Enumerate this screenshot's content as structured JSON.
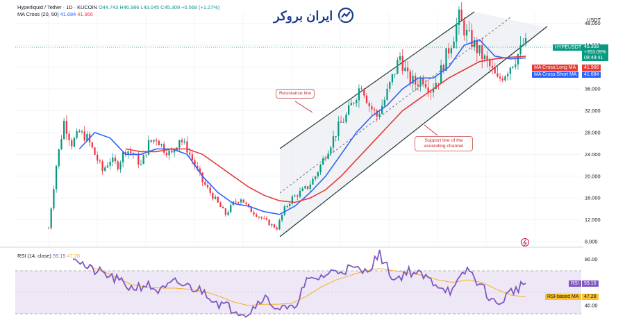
{
  "header": {
    "symbol": "Hyperliquid / Tether · 1D · KUCOIN",
    "open": "O44.743",
    "high": "H46.986",
    "low": "L43.045",
    "close": "C45.309",
    "change": "+0.568 (+1.27%)",
    "ma_label": "MA Cross (20, 50)",
    "ma_short": "41.684",
    "ma_long": "41.966"
  },
  "rsi_header": {
    "label": "RSI (14, close)",
    "rsi": "59.15",
    "rsi_ma": "47.28"
  },
  "logo_text": "ایران بروکر",
  "axis": {
    "currency": "USDT"
  },
  "tags": {
    "symbol_tag": "HYPEUSDT",
    "price": "45.309",
    "pct": "+353.09%",
    "countdown": "08:49:41",
    "long_ma_label": "MA Cross:Long MA",
    "long_ma_value": "41.966",
    "short_ma_label": "MA Cross:Short MA",
    "short_ma_value": "41.684",
    "rsi_label": "RSI",
    "rsi_value": "59.15",
    "rsi_ma_label": "RSI-based MA",
    "rsi_ma_value": "47.28"
  },
  "annotations": {
    "resistance": "Resistance line",
    "support": "Support line of the ascending channel"
  },
  "colors": {
    "up": "#089981",
    "down": "#f23645",
    "short_ma": "#2962ff",
    "long_ma": "#e53935",
    "rsi": "#7e57c2",
    "rsi_ma": "#f5b021",
    "channel": "#1f3b36"
  },
  "chart_data": [
    {
      "type": "candlestick",
      "title": "Hyperliquid / Tether · 1D · KUCOIN",
      "y_ticks": [
        8,
        12,
        16,
        20,
        24,
        28,
        32,
        36,
        40,
        44,
        48
      ],
      "y_tick_labels": [
        "8.000",
        "12.000",
        "16.000",
        "20.000",
        "24.000",
        "28.000",
        "32.000",
        "36.000",
        "40.000",
        "44.000",
        "48.000"
      ],
      "ylim": [
        7.5,
        50
      ],
      "y_unit": "USDT",
      "last_price": 45.309,
      "close_path": [
        [
          0,
          10.5
        ],
        [
          3,
          22
        ],
        [
          6,
          30
        ],
        [
          9,
          26
        ],
        [
          12,
          28
        ],
        [
          15,
          27
        ],
        [
          18,
          24
        ],
        [
          21,
          21
        ],
        [
          24,
          23
        ],
        [
          27,
          22
        ],
        [
          30,
          25
        ],
        [
          33,
          24
        ],
        [
          36,
          22
        ],
        [
          39,
          26
        ],
        [
          42,
          27
        ],
        [
          45,
          25
        ],
        [
          48,
          24
        ],
        [
          51,
          27
        ],
        [
          54,
          25
        ],
        [
          57,
          22
        ],
        [
          60,
          19
        ],
        [
          63,
          17
        ],
        [
          66,
          15
        ],
        [
          69,
          13
        ],
        [
          72,
          15
        ],
        [
          75,
          16
        ],
        [
          78,
          14
        ],
        [
          81,
          13
        ],
        [
          84,
          12
        ],
        [
          87,
          11
        ],
        [
          89,
          10.5
        ],
        [
          92,
          14
        ],
        [
          95,
          16
        ],
        [
          98,
          17
        ],
        [
          101,
          18
        ],
        [
          104,
          20
        ],
        [
          107,
          23
        ],
        [
          110,
          26
        ],
        [
          113,
          29
        ],
        [
          116,
          31
        ],
        [
          119,
          34
        ],
        [
          122,
          37
        ],
        [
          125,
          33
        ],
        [
          128,
          31
        ],
        [
          131,
          34
        ],
        [
          134,
          38
        ],
        [
          137,
          42
        ],
        [
          140,
          38
        ],
        [
          143,
          37
        ],
        [
          146,
          38
        ],
        [
          149,
          36
        ],
        [
          152,
          38
        ],
        [
          155,
          42
        ],
        [
          158,
          46
        ],
        [
          160,
          49
        ],
        [
          163,
          46
        ],
        [
          166,
          44
        ],
        [
          169,
          42
        ],
        [
          172,
          40
        ],
        [
          175,
          37.5
        ],
        [
          178,
          39
        ],
        [
          181,
          41
        ],
        [
          184,
          43
        ],
        [
          186,
          45.3
        ]
      ],
      "series": [
        {
          "name": "MA Cross:Short MA",
          "points": [
            [
              12,
              25
            ],
            [
              18,
              28
            ],
            [
              24,
              27
            ],
            [
              30,
              24
            ],
            [
              36,
              24
            ],
            [
              42,
              25
            ],
            [
              48,
              25
            ],
            [
              54,
              24
            ],
            [
              60,
              20
            ],
            [
              66,
              17
            ],
            [
              72,
              15
            ],
            [
              78,
              14.5
            ],
            [
              84,
              13.5
            ],
            [
              90,
              13
            ],
            [
              96,
              14.5
            ],
            [
              102,
              17
            ],
            [
              108,
              20
            ],
            [
              114,
              24
            ],
            [
              120,
              28
            ],
            [
              126,
              31
            ],
            [
              132,
              33
            ],
            [
              138,
              36
            ],
            [
              144,
              38
            ],
            [
              150,
              38
            ],
            [
              156,
              40
            ],
            [
              162,
              44
            ],
            [
              168,
              45
            ],
            [
              174,
              42
            ],
            [
              180,
              41.5
            ],
            [
              186,
              41.684
            ]
          ]
        },
        {
          "name": "MA Cross:Long MA",
          "points": [
            [
              30,
              25
            ],
            [
              36,
              24.5
            ],
            [
              42,
              24.5
            ],
            [
              48,
              25
            ],
            [
              54,
              25
            ],
            [
              60,
              24
            ],
            [
              66,
              22
            ],
            [
              72,
              20
            ],
            [
              78,
              18
            ],
            [
              84,
              16.5
            ],
            [
              90,
              15.5
            ],
            [
              96,
              15.2
            ],
            [
              102,
              16
            ],
            [
              108,
              17.5
            ],
            [
              114,
              20
            ],
            [
              120,
              23
            ],
            [
              126,
              26
            ],
            [
              132,
              29
            ],
            [
              138,
              32
            ],
            [
              144,
              34
            ],
            [
              150,
              36
            ],
            [
              156,
              38
            ],
            [
              162,
              39.5
            ],
            [
              168,
              41
            ],
            [
              174,
              41.5
            ],
            [
              180,
              41.8
            ],
            [
              186,
              41.966
            ]
          ]
        }
      ],
      "annotations": [
        "Resistance line",
        "Support line of the ascending channel"
      ]
    },
    {
      "type": "line",
      "title": "RSI (14, close)",
      "y_ticks": [
        40,
        60,
        80
      ],
      "y_tick_labels": [
        "40.00",
        "60.00",
        "80.00"
      ],
      "bands": [
        30,
        70
      ],
      "ylim": [
        28,
        88
      ],
      "series": [
        {
          "name": "RSI",
          "points": [
            [
              0,
              84
            ],
            [
              6,
              72
            ],
            [
              12,
              68
            ],
            [
              18,
              62
            ],
            [
              24,
              55
            ],
            [
              30,
              58
            ],
            [
              36,
              52
            ],
            [
              42,
              60
            ],
            [
              48,
              56
            ],
            [
              54,
              52
            ],
            [
              60,
              42
            ],
            [
              66,
              37
            ],
            [
              72,
              33
            ],
            [
              78,
              48
            ],
            [
              84,
              38
            ],
            [
              90,
              36
            ],
            [
              96,
              60
            ],
            [
              102,
              65
            ],
            [
              108,
              70
            ],
            [
              114,
              72
            ],
            [
              120,
              69
            ],
            [
              126,
              84
            ],
            [
              132,
              62
            ],
            [
              138,
              70
            ],
            [
              144,
              65
            ],
            [
              150,
              58
            ],
            [
              156,
              52
            ],
            [
              162,
              72
            ],
            [
              168,
              56
            ],
            [
              174,
              40
            ],
            [
              180,
              52
            ],
            [
              186,
              59.15
            ]
          ]
        },
        {
          "name": "RSI-based MA",
          "points": [
            [
              6,
              74
            ],
            [
              12,
              70
            ],
            [
              18,
              64
            ],
            [
              24,
              58
            ],
            [
              30,
              56
            ],
            [
              36,
              55
            ],
            [
              42,
              55
            ],
            [
              48,
              54
            ],
            [
              54,
              52
            ],
            [
              60,
              48
            ],
            [
              66,
              43
            ],
            [
              72,
              40
            ],
            [
              78,
              41
            ],
            [
              84,
              41
            ],
            [
              90,
              42
            ],
            [
              96,
              48
            ],
            [
              102,
              56
            ],
            [
              108,
              62
            ],
            [
              114,
              66
            ],
            [
              120,
              70
            ],
            [
              126,
              72
            ],
            [
              132,
              70
            ],
            [
              138,
              68
            ],
            [
              144,
              66
            ],
            [
              150,
              62
            ],
            [
              156,
              60
            ],
            [
              162,
              62
            ],
            [
              168,
              60
            ],
            [
              174,
              54
            ],
            [
              180,
              49
            ],
            [
              186,
              47.28
            ]
          ]
        }
      ]
    }
  ]
}
